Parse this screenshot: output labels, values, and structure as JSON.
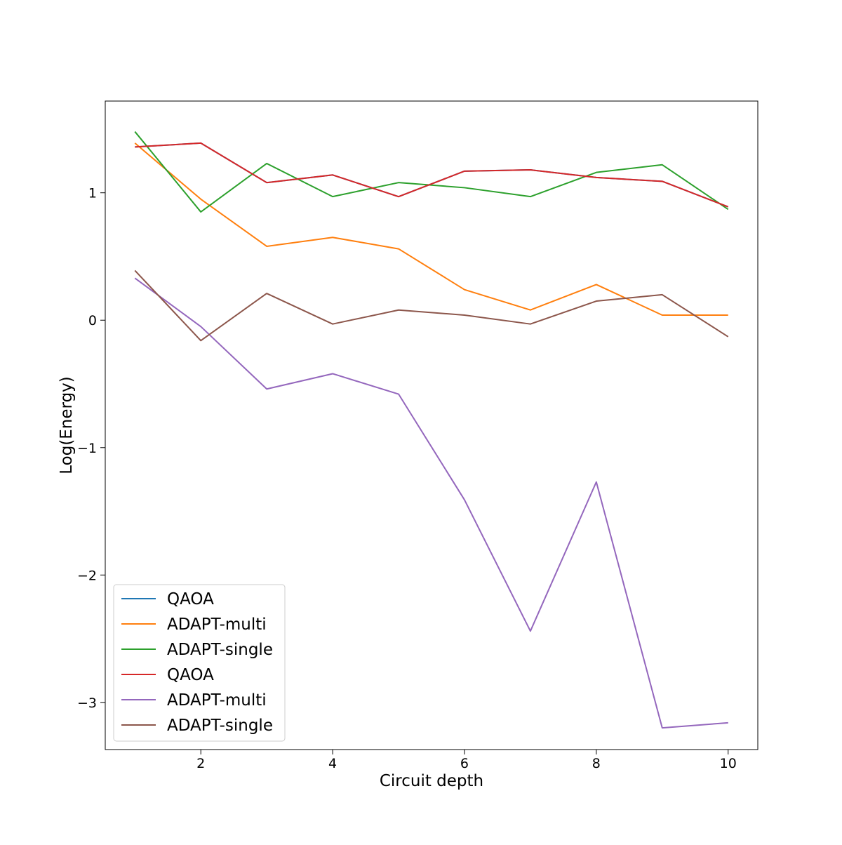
{
  "chart_data": {
    "type": "line",
    "title": "",
    "xlabel": "Circuit depth",
    "ylabel": "Log(Energy)",
    "xlim": [
      0.55,
      10.45
    ],
    "ylim": [
      -3.37,
      1.72
    ],
    "xticks": [
      2,
      4,
      6,
      8,
      10
    ],
    "yticks": [
      -3,
      -2,
      -1,
      0,
      1
    ],
    "x": [
      1,
      2,
      3,
      4,
      5,
      6,
      7,
      8,
      9,
      10
    ],
    "grid": false,
    "legend_position": "lower-left",
    "series": [
      {
        "name": "QAOA",
        "color": "#1f77b4",
        "values": [
          1.36,
          1.39,
          1.08,
          1.14,
          0.97,
          1.17,
          1.18,
          1.12,
          1.09,
          0.89
        ]
      },
      {
        "name": "ADAPT-multi",
        "color": "#ff7f0e",
        "values": [
          1.39,
          0.95,
          0.58,
          0.65,
          0.56,
          0.24,
          0.08,
          0.28,
          0.04,
          0.04
        ]
      },
      {
        "name": "ADAPT-single",
        "color": "#2ca02c",
        "values": [
          1.48,
          0.85,
          1.23,
          0.97,
          1.08,
          1.04,
          0.97,
          1.16,
          1.22,
          0.87
        ]
      },
      {
        "name": "QAOA",
        "color": "#d62728",
        "values": [
          1.36,
          1.39,
          1.08,
          1.14,
          0.97,
          1.17,
          1.18,
          1.12,
          1.09,
          0.89
        ]
      },
      {
        "name": "ADAPT-multi",
        "color": "#9467bd",
        "values": [
          0.33,
          -0.05,
          -0.54,
          -0.42,
          -0.58,
          -1.41,
          -2.44,
          -1.27,
          -3.2,
          -3.16
        ]
      },
      {
        "name": "ADAPT-single",
        "color": "#8c564b",
        "values": [
          0.39,
          -0.16,
          0.21,
          -0.03,
          0.08,
          0.04,
          -0.03,
          0.15,
          0.2,
          -0.13
        ]
      }
    ]
  }
}
